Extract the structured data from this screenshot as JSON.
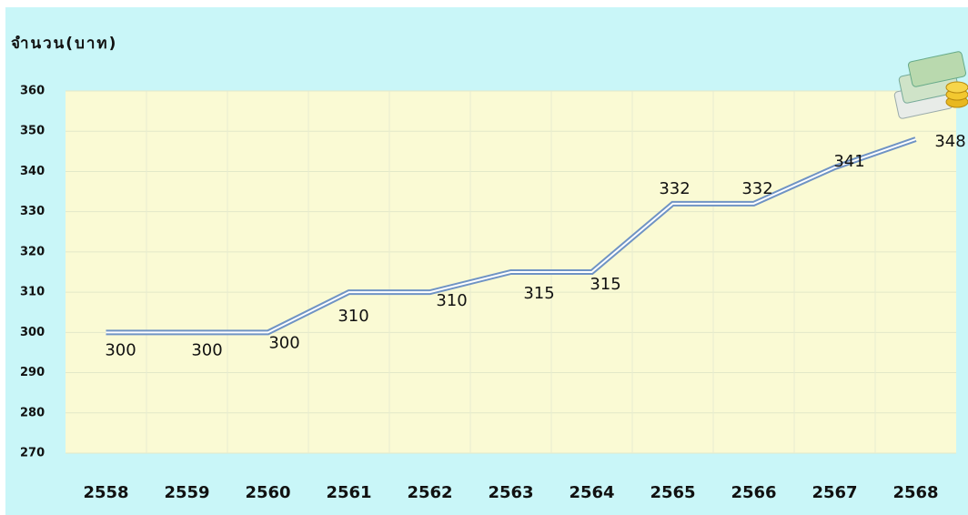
{
  "chart_data": {
    "type": "line",
    "y_axis_label": "จำนวน(บาท)",
    "categories": [
      "2558",
      "2559",
      "2560",
      "2561",
      "2562",
      "2563",
      "2564",
      "2565",
      "2566",
      "2567",
      "2568"
    ],
    "values": [
      300,
      300,
      300,
      310,
      310,
      315,
      315,
      332,
      332,
      341,
      348
    ],
    "color": "#6f93c4",
    "ylim": [
      270,
      360
    ],
    "yticks": [
      270,
      280,
      290,
      300,
      310,
      320,
      330,
      340,
      350,
      360
    ],
    "grid": true
  }
}
